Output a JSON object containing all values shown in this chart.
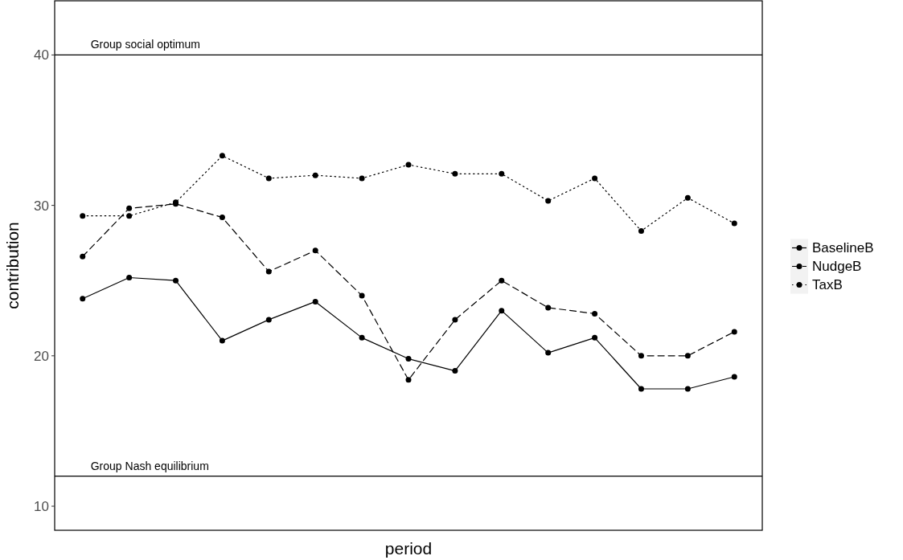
{
  "chart_data": {
    "type": "line",
    "xlabel": "period",
    "ylabel": "contribution",
    "categories": [
      null,
      null,
      null,
      null,
      null,
      null,
      null,
      null,
      null,
      null,
      null,
      null,
      null,
      null,
      null
    ],
    "series": [
      {
        "name": "BaselineB",
        "color": "#000000",
        "line_style": "solid",
        "values": [
          23.8,
          25.2,
          25.0,
          21.0,
          22.4,
          23.6,
          21.2,
          19.8,
          19.0,
          23.0,
          20.2,
          21.2,
          17.8,
          17.8,
          18.6
        ]
      },
      {
        "name": "NudgeB",
        "color": "#000000",
        "line_style": "dashed",
        "values": [
          26.6,
          29.8,
          30.1,
          29.2,
          25.6,
          27.0,
          24.0,
          18.4,
          22.4,
          25.0,
          23.2,
          22.8,
          20.0,
          20.0,
          21.6
        ]
      },
      {
        "name": "TaxB",
        "color": "#000000",
        "line_style": "dotted",
        "values": [
          29.3,
          29.3,
          30.2,
          33.3,
          31.8,
          32.0,
          31.8,
          32.7,
          32.1,
          32.1,
          30.3,
          31.8,
          28.3,
          30.5,
          28.8
        ]
      }
    ],
    "ylim": [
      8.4,
      43.6
    ],
    "yticks": [
      10,
      20,
      30,
      40
    ],
    "tick_labels": "y",
    "marker": "circle",
    "legend": "right",
    "ref_lines": [
      {
        "axis": "y",
        "value": 40,
        "label": "Group social optimum",
        "color": "#000000"
      },
      {
        "axis": "y",
        "value": 12,
        "label": "Group Nash equilibrium",
        "color": "#000000"
      }
    ]
  }
}
